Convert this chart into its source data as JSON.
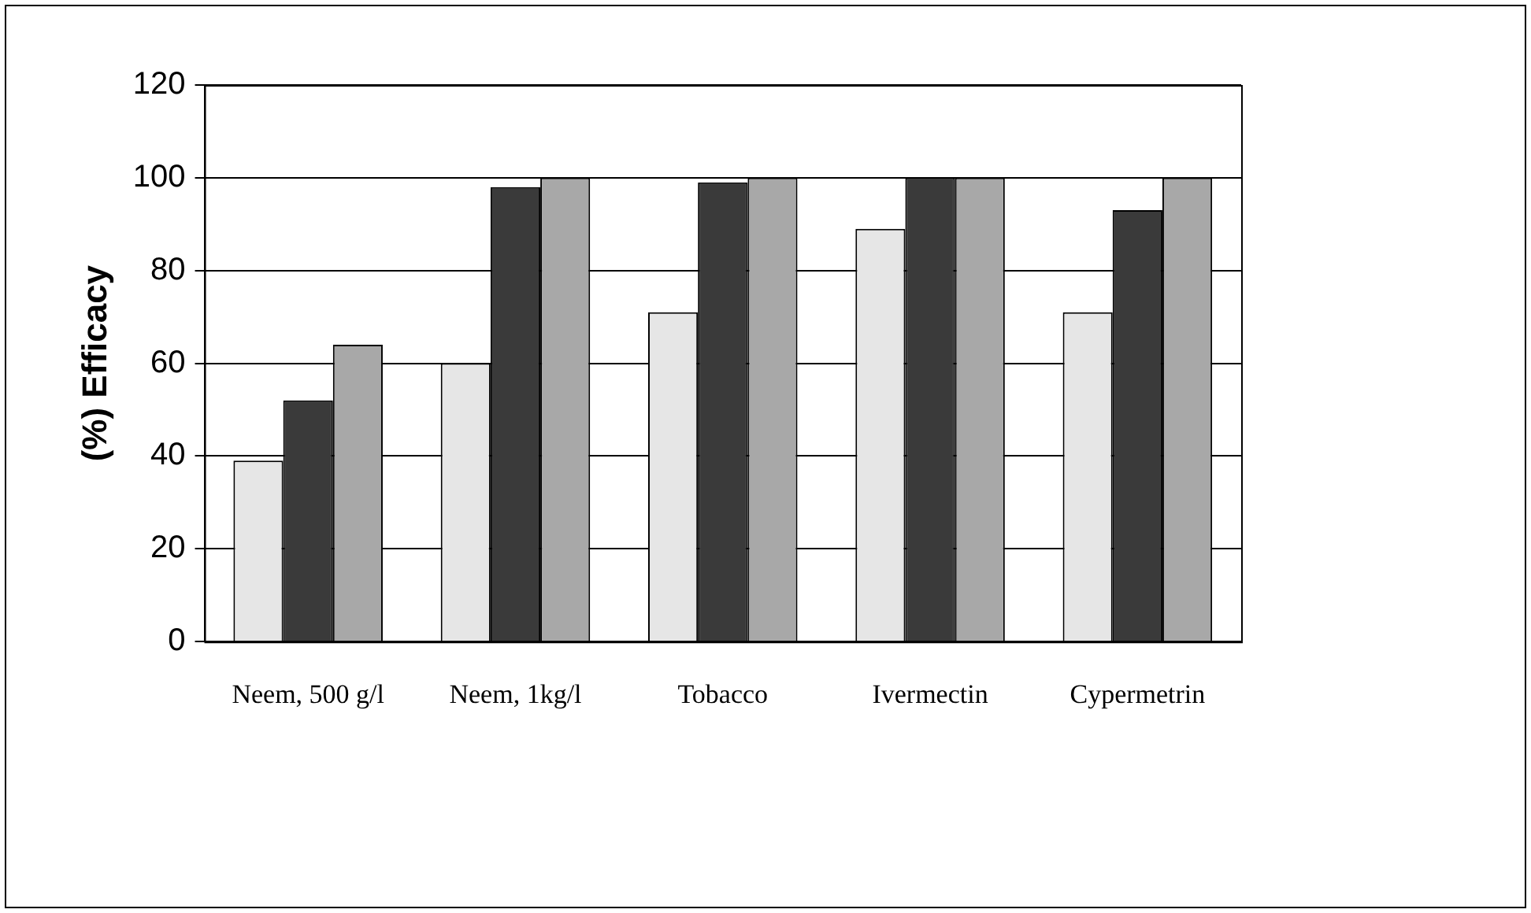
{
  "chart_data": {
    "type": "bar",
    "ylabel": "(%) Efficacy",
    "categories": [
      "Neem, 500 g/l",
      "Neem, 1kg/l",
      "Tobacco",
      "Ivermectin",
      "Cypermetrin"
    ],
    "series": [
      {
        "color": "#e6e6e6",
        "values": [
          39,
          60,
          71,
          89,
          71
        ]
      },
      {
        "color": "#3a3a3a",
        "values": [
          52,
          98,
          99,
          100,
          93
        ]
      },
      {
        "color": "#a8a8a8",
        "values": [
          64,
          100,
          100,
          100,
          100
        ]
      }
    ],
    "ylim": [
      0,
      120
    ],
    "yticks": [
      0,
      20,
      40,
      60,
      80,
      100,
      120
    ],
    "grid": "y",
    "legend": false
  }
}
